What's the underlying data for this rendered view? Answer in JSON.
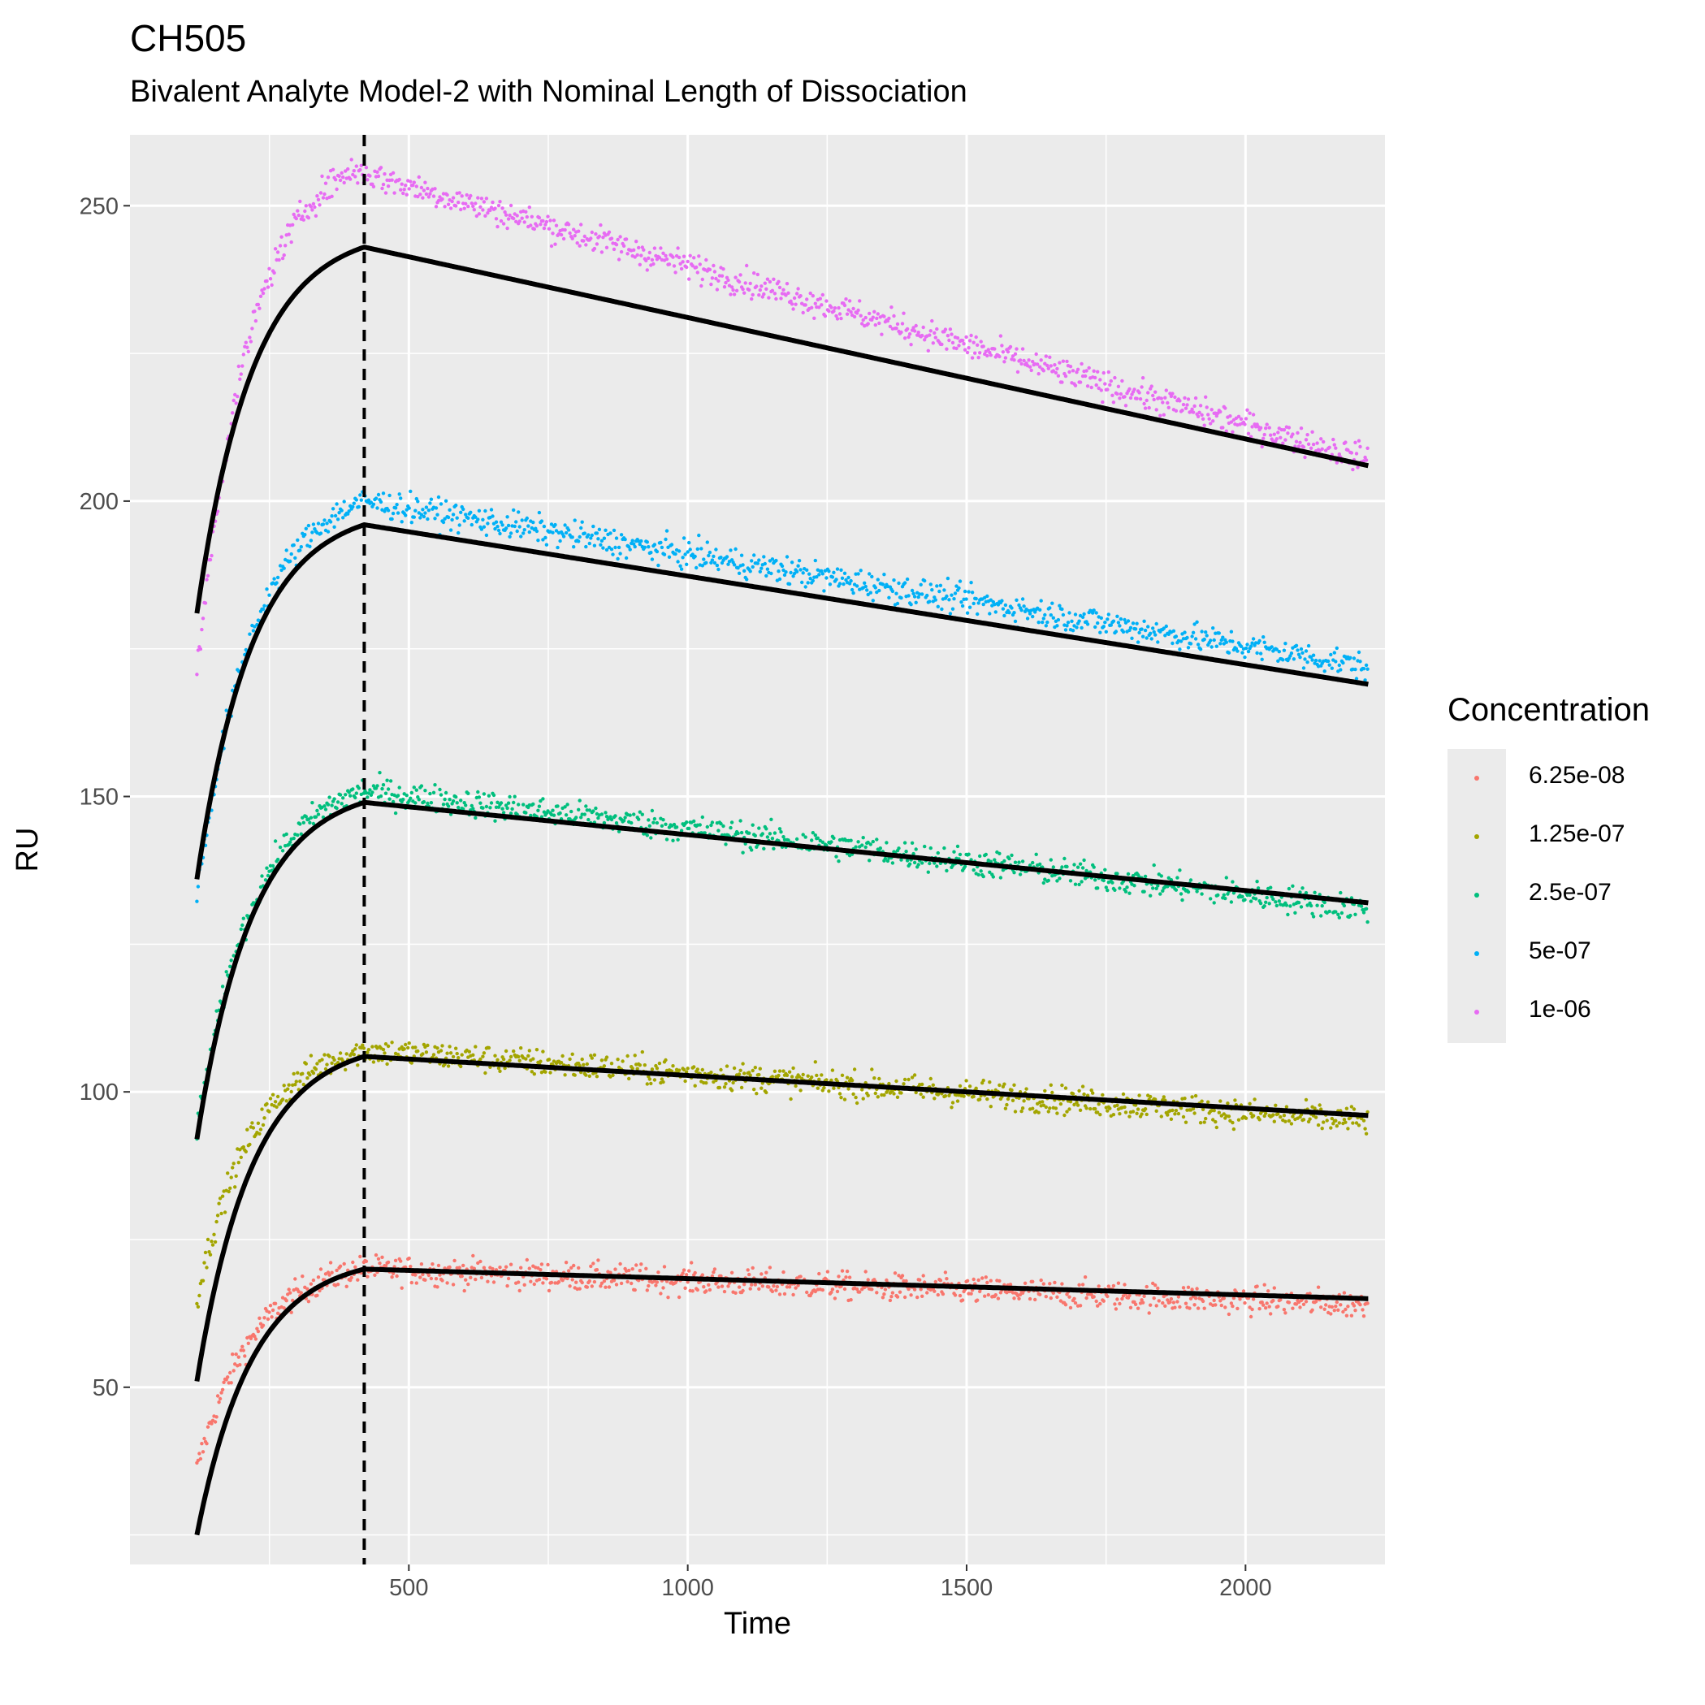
{
  "chart_data": {
    "type": "scatter",
    "title": "CH505",
    "subtitle": "Bivalent Analyte Model-2 with Nominal Length of Dissociation",
    "xlabel": "Time",
    "ylabel": "RU",
    "xlim": [
      0,
      2250
    ],
    "ylim": [
      20,
      262
    ],
    "x_ticks": [
      500,
      1000,
      1500,
      2000
    ],
    "y_ticks": [
      50,
      100,
      150,
      200,
      250
    ],
    "grid": true,
    "legend": {
      "title": "Concentration",
      "position": "right"
    },
    "reference_line": {
      "x": 420,
      "style": "dashed",
      "color": "#000000"
    },
    "fit_color": "#000000",
    "series": [
      {
        "name": "6.25e-08",
        "color": "#F8766D",
        "observed": {
          "start": [
            120,
            36
          ],
          "peak": [
            420,
            70
          ],
          "end": [
            2220,
            64
          ]
        },
        "fit": {
          "start": [
            120,
            25
          ],
          "peak": [
            420,
            70
          ],
          "end": [
            2220,
            65
          ]
        }
      },
      {
        "name": "1.25e-07",
        "color": "#A3A500",
        "observed": {
          "start": [
            120,
            65
          ],
          "peak": [
            420,
            107
          ],
          "end": [
            2220,
            95
          ]
        },
        "fit": {
          "start": [
            120,
            51
          ],
          "peak": [
            420,
            106
          ],
          "end": [
            2220,
            96
          ]
        }
      },
      {
        "name": "2.5e-07",
        "color": "#00BF7D",
        "observed": {
          "start": [
            120,
            93
          ],
          "peak": [
            420,
            151
          ],
          "end": [
            2220,
            131
          ]
        },
        "fit": {
          "start": [
            120,
            92
          ],
          "peak": [
            420,
            149
          ],
          "end": [
            2220,
            132
          ]
        }
      },
      {
        "name": "5e-07",
        "color": "#00B0F6",
        "observed": {
          "start": [
            120,
            133
          ],
          "peak": [
            420,
            200
          ],
          "end": [
            2220,
            172
          ]
        },
        "fit": {
          "start": [
            120,
            136
          ],
          "peak": [
            420,
            196
          ],
          "end": [
            2220,
            169
          ]
        }
      },
      {
        "name": "1e-06",
        "color": "#E76BF3",
        "observed": {
          "start": [
            120,
            170
          ],
          "peak": [
            400,
            256
          ],
          "end": [
            2220,
            207
          ]
        },
        "fit": {
          "start": [
            120,
            181
          ],
          "peak": [
            420,
            243
          ],
          "end": [
            2220,
            206
          ]
        }
      }
    ]
  }
}
